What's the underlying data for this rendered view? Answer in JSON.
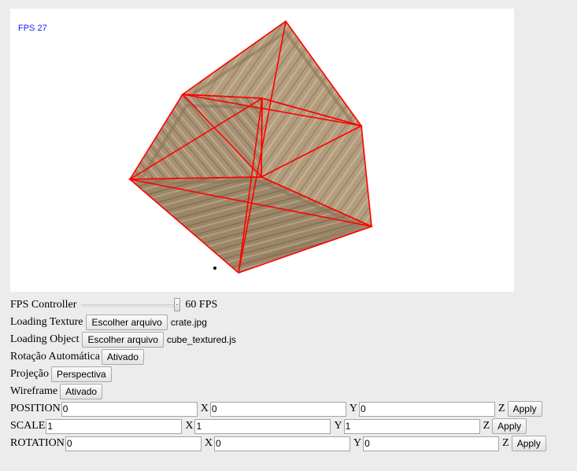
{
  "viewport": {
    "fps_text": "FPS 27",
    "object": "crate-textured-cube"
  },
  "fps_controller": {
    "label": "FPS Controller",
    "value_text": "60 FPS",
    "level": 1.0
  },
  "loading_texture": {
    "label": "Loading Texture",
    "button": "Escolher arquivo",
    "file": "crate.jpg"
  },
  "loading_object": {
    "label": "Loading Object",
    "button": "Escolher arquivo",
    "file": "cube_textured.js"
  },
  "auto_rotation": {
    "label": "Rotação Automática",
    "button": "Ativado"
  },
  "projection": {
    "label": "Projeção",
    "button": "Perspectiva"
  },
  "wireframe": {
    "label": "Wireframe",
    "button": "Ativado"
  },
  "transforms": [
    {
      "label": "POSITION",
      "x": "0",
      "y": "0",
      "z": "0",
      "apply": "Apply"
    },
    {
      "label": "SCALE",
      "x": "1",
      "y": "1",
      "z": "1",
      "apply": "Apply"
    },
    {
      "label": "ROTATION",
      "x": "0",
      "y": "0",
      "z": "0",
      "apply": "Apply"
    }
  ],
  "axis_labels": {
    "x": "X",
    "y": "Y",
    "z": "Z"
  },
  "colors": {
    "wireframe": "#ff0000",
    "fps_text": "#1a1aff",
    "crate_wood": "#b39a7c"
  }
}
